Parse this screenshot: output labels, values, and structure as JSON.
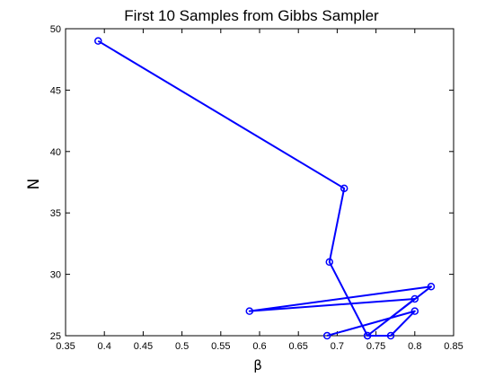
{
  "chart_data": {
    "type": "line",
    "title": "First 10 Samples from Gibbs Sampler",
    "xlabel": "β",
    "ylabel": "N",
    "xlim": [
      0.35,
      0.85
    ],
    "ylim": [
      25,
      50
    ],
    "xticks": [
      0.35,
      0.4,
      0.45,
      0.5,
      0.55,
      0.6,
      0.65,
      0.7,
      0.75,
      0.8,
      0.85
    ],
    "xtick_labels": [
      "0.35",
      "0.4",
      "0.45",
      "0.5",
      "0.55",
      "0.6",
      "0.65",
      "0.7",
      "0.75",
      "0.8",
      "0.85"
    ],
    "yticks": [
      25,
      30,
      35,
      40,
      45,
      50
    ],
    "ytick_labels": [
      "25",
      "30",
      "35",
      "40",
      "45",
      "50"
    ],
    "grid": false,
    "series": [
      {
        "color": "#0000ff",
        "marker": "circle",
        "points": [
          {
            "x": 0.392,
            "y": 49
          },
          {
            "x": 0.709,
            "y": 37
          },
          {
            "x": 0.69,
            "y": 31
          },
          {
            "x": 0.739,
            "y": 25
          },
          {
            "x": 0.821,
            "y": 29
          },
          {
            "x": 0.587,
            "y": 27
          },
          {
            "x": 0.8,
            "y": 28
          },
          {
            "x": 0.739,
            "y": 25
          },
          {
            "x": 0.769,
            "y": 25
          },
          {
            "x": 0.8,
            "y": 27
          },
          {
            "x": 0.687,
            "y": 25
          }
        ]
      }
    ]
  }
}
